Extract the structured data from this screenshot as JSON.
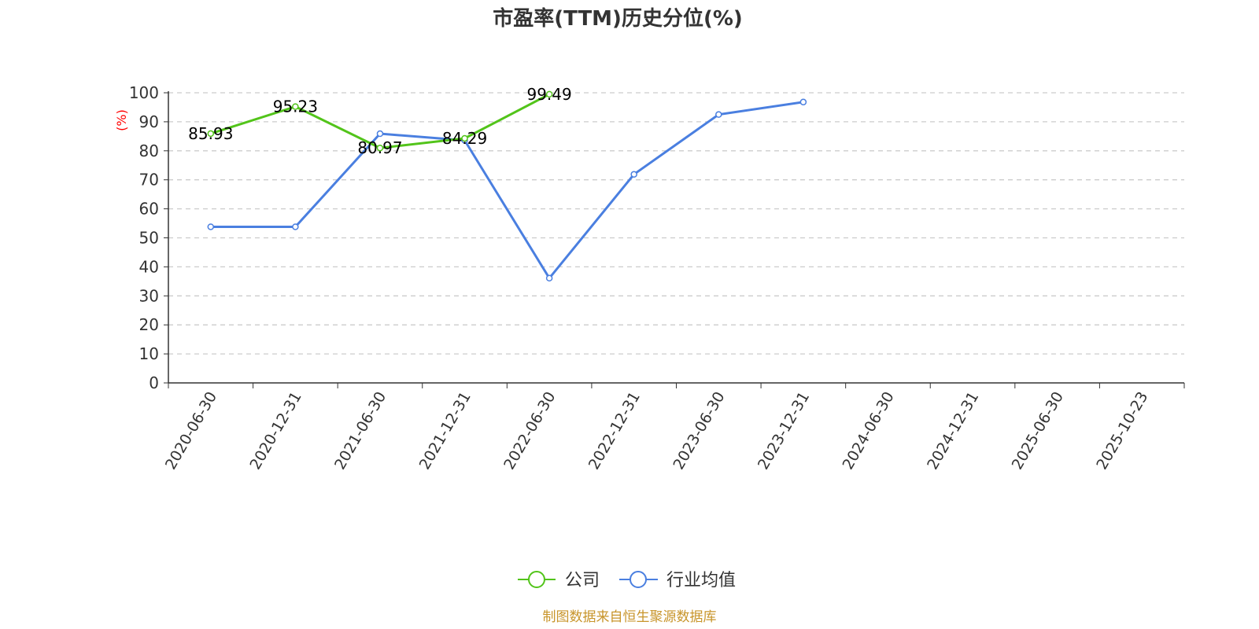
{
  "chart_data": {
    "type": "line",
    "title": "市盈率(TTM)历史分位(%)",
    "ylabel": "(%)",
    "ylim": [
      0,
      100
    ],
    "yticks": [
      "0",
      "10",
      "20",
      "30",
      "40",
      "50",
      "60",
      "70",
      "80",
      "90",
      "100"
    ],
    "grid": true,
    "legend_position": "bottom",
    "categories": [
      "2020-06-30",
      "2020-12-31",
      "2021-06-30",
      "2021-12-31",
      "2022-06-30",
      "2022-12-31",
      "2023-06-30",
      "2023-12-31",
      "2024-06-30",
      "2024-12-31",
      "2025-06-30",
      "2025-10-23"
    ],
    "series": [
      {
        "name": "公司",
        "color": "#52c41a",
        "values": [
          85.93,
          95.23,
          80.97,
          84.29,
          99.49,
          null,
          null,
          null,
          null,
          null,
          null,
          null
        ],
        "labels": [
          "85.93",
          "95.23",
          "80.97",
          "84.29",
          "99.49"
        ]
      },
      {
        "name": "行业均值",
        "color": "#4a7fe0",
        "values": [
          53.8,
          53.8,
          85.9,
          83.6,
          36.1,
          71.9,
          92.5,
          96.8,
          null,
          null,
          null,
          null
        ]
      }
    ]
  },
  "footer": {
    "source": "制图数据来自恒生聚源数据库",
    "color": "#c8952b"
  }
}
